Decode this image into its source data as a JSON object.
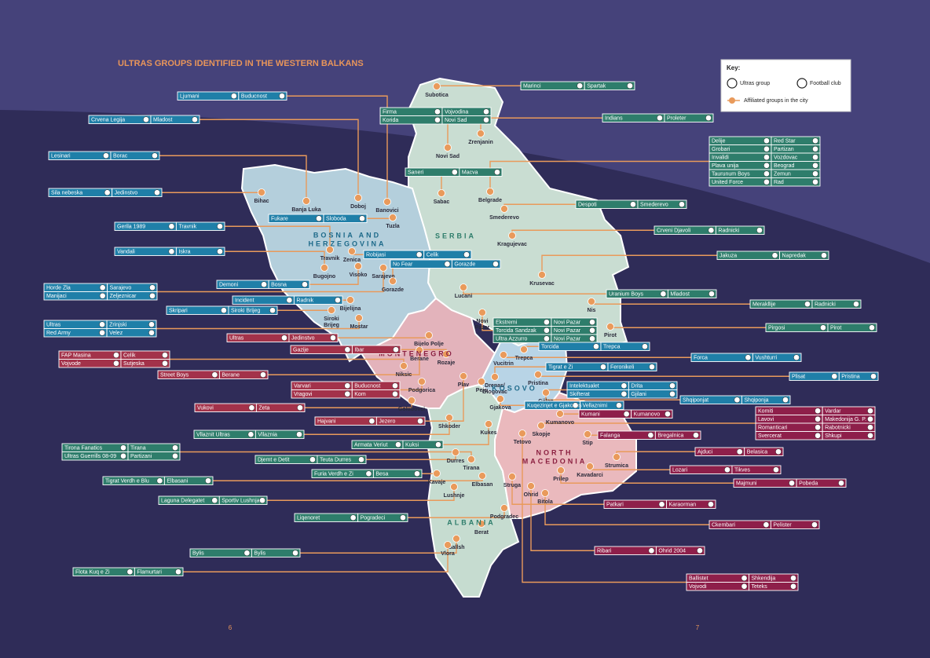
{
  "title": "ULTRAS GROUPS IDENTIFIED IN THE WESTERN BALKANS",
  "key": {
    "title": "Key:",
    "ultras_group": "Ultras group",
    "football_club": "Football club",
    "affiliated": "Affiliated groups in the city"
  },
  "countries": [
    {
      "lines": [
        "BOSNIA AND",
        "HERZEGOVINA"
      ],
      "color": "#1e6a8a"
    },
    {
      "lines": [
        "SERBIA"
      ],
      "color": "#2e7d6b"
    },
    {
      "lines": [
        "MONTENEGRO"
      ],
      "color": "#8b2040"
    },
    {
      "lines": [
        "KOSOVO"
      ],
      "color": "#1e6a8a"
    },
    {
      "lines": [
        "NORTH",
        "MACEDONIA"
      ],
      "color": "#8b2040"
    },
    {
      "lines": [
        "ALBANIA"
      ],
      "color": "#2e7d6b"
    }
  ],
  "cities": [
    "Subotica",
    "Novi Sad",
    "Zrenjanin",
    "Sabac",
    "Belgrade",
    "Smederevo",
    "Kragujevac",
    "Krusevac",
    "Nis",
    "Pirot",
    [
      "Novi",
      "Pazar"
    ],
    "Lucani",
    "Bihac",
    "Banja Luka",
    "Doboj",
    "Banovici",
    "Tuzla",
    "Travnik",
    "Zenica",
    "Visoko",
    "Sarajevo",
    "Bugojno",
    "Gorazde",
    "Bijelijna",
    [
      "Siroki",
      "Brijeg"
    ],
    "Mostar",
    "Bijelo Polje",
    "Berane",
    "Rozaje",
    "Niksic",
    "Podgorica",
    "Golubovci",
    "Plav",
    "Peja",
    "Vucitrin",
    "Trepca",
    [
      "Drenas/",
      "Glogovac"
    ],
    "Pristina",
    "Gjilan",
    "Gjakova",
    "Kumanovo",
    "Shkoder",
    "Kukes",
    "Skopje",
    "Tetovo",
    "Stip",
    "Strumica",
    "Durres",
    "Tirana",
    "Kavaje",
    "Prilep",
    "Kavadarci",
    "Elbasan",
    "Lushnje",
    "Struga",
    "Ohrid",
    "Bitola",
    "Podgradec",
    "Berat",
    "Ballsh",
    "Vlora"
  ],
  "groups": [
    {
      "color": "#2e7d6b",
      "rows": [
        [
          "Marinci",
          "Spartak"
        ]
      ]
    },
    {
      "color": "#1f7fa8",
      "rows": [
        [
          "Ljumani",
          "Buducnost"
        ]
      ]
    },
    {
      "color": "#2e7d6b",
      "rows": [
        [
          "Firma",
          "Vojvodina"
        ],
        [
          "Korida",
          "Novi Sad"
        ]
      ]
    },
    {
      "color": "#1f7fa8",
      "rows": [
        [
          "Crvena Legija",
          "Mladost"
        ]
      ]
    },
    {
      "color": "#2e7d6b",
      "rows": [
        [
          "Indians",
          "Proleter"
        ]
      ]
    },
    {
      "color": "#2e7d6b",
      "rows": [
        [
          "Delije",
          "Red Star"
        ],
        [
          "Grobari",
          "Partizan"
        ],
        [
          "Invalidi",
          "Vozdovac"
        ],
        [
          "Plava unija",
          "Beograd"
        ],
        [
          "Taurunum Boys",
          "Zemun"
        ],
        [
          "United Force",
          "Rad"
        ]
      ]
    },
    {
      "color": "#1f7fa8",
      "rows": [
        [
          "Lesinari",
          "Borac"
        ]
      ]
    },
    {
      "color": "#2e7d6b",
      "rows": [
        [
          "Saneri",
          "Macva"
        ]
      ]
    },
    {
      "color": "#1f7fa8",
      "rows": [
        [
          "Sila nebeska",
          "Jedinstvo"
        ]
      ]
    },
    {
      "color": "#2e7d6b",
      "rows": [
        [
          "Despoti",
          "Smederevo"
        ]
      ]
    },
    {
      "color": "#1f7fa8",
      "rows": [
        [
          "Fukare",
          "Sloboda"
        ]
      ]
    },
    {
      "color": "#1f7fa8",
      "rows": [
        [
          "Gerila 1989",
          "Travnik"
        ]
      ]
    },
    {
      "color": "#2e7d6b",
      "rows": [
        [
          "Crveni Djavoli",
          "Radnicki"
        ]
      ]
    },
    {
      "color": "#1f7fa8",
      "rows": [
        [
          "Vandali",
          "Iskra"
        ]
      ]
    },
    {
      "color": "#1f7fa8",
      "rows": [
        [
          "Robijasi",
          "Celik"
        ]
      ]
    },
    {
      "color": "#2e7d6b",
      "rows": [
        [
          "Jakuza",
          "Napredak"
        ]
      ]
    },
    {
      "color": "#1f7fa8",
      "rows": [
        [
          "No Fear",
          "Gorazde"
        ]
      ]
    },
    {
      "color": "#1f7fa8",
      "rows": [
        [
          "Demoni",
          "Bosna"
        ]
      ]
    },
    {
      "color": "#1f7fa8",
      "rows": [
        [
          "Horde Zla",
          "Sarajevo"
        ],
        [
          "Manijaci",
          "Zeljeznicar"
        ]
      ]
    },
    {
      "color": "#2e7d6b",
      "rows": [
        [
          "Uranium Boys",
          "Mladost"
        ]
      ]
    },
    {
      "color": "#1f7fa8",
      "rows": [
        [
          "Incident",
          "Radnik"
        ]
      ]
    },
    {
      "color": "#2e7d6b",
      "rows": [
        [
          "Merakllije",
          "Radnicki"
        ]
      ]
    },
    {
      "color": "#1f7fa8",
      "rows": [
        [
          "Skripari",
          "Siroki Brijeg"
        ]
      ]
    },
    {
      "color": "#1f7fa8",
      "rows": [
        [
          "Ultras",
          "Zrinjski"
        ],
        [
          "Red Army",
          "Velez"
        ]
      ]
    },
    {
      "color": "#2e7d6b",
      "rows": [
        [
          "Ekstremi",
          "Novi Pazar"
        ],
        [
          "Torcida Sandzak",
          "Novi Pazar"
        ],
        [
          "Ultra Azzurro",
          "Novi Pazar"
        ]
      ]
    },
    {
      "color": "#2e7d6b",
      "rows": [
        [
          "Pirgosi",
          "Pirot"
        ]
      ]
    },
    {
      "color": "#a3324a",
      "rows": [
        [
          "Ultras",
          "Jedinstvo"
        ]
      ]
    },
    {
      "color": "#a3324a",
      "rows": [
        [
          "Gazije",
          "Ibar"
        ]
      ]
    },
    {
      "color": "#1f7fa8",
      "rows": [
        [
          "Torcida",
          "Trepca"
        ]
      ]
    },
    {
      "color": "#a3324a",
      "rows": [
        [
          "FAP Masina",
          "Celik"
        ],
        [
          "Vojvode",
          "Sutjeska"
        ]
      ]
    },
    {
      "color": "#1f7fa8",
      "rows": [
        [
          "Forca",
          "Vushturri"
        ]
      ]
    },
    {
      "color": "#1f7fa8",
      "rows": [
        [
          "Tigrat e Zi",
          "Feronikeli"
        ]
      ]
    },
    {
      "color": "#a3324a",
      "rows": [
        [
          "Street Boys",
          "Berane"
        ]
      ]
    },
    {
      "color": "#1f7fa8",
      "rows": [
        [
          "Plisat",
          "Pristina"
        ]
      ]
    },
    {
      "color": "#a3324a",
      "rows": [
        [
          "Varvari",
          "Buducnost"
        ],
        [
          "Vragovi",
          "Kom"
        ]
      ]
    },
    {
      "color": "#1f7fa8",
      "rows": [
        [
          "Intelektualet",
          "Drita"
        ],
        [
          "Skifterat",
          "Gjilani"
        ]
      ]
    },
    {
      "color": "#1f7fa8",
      "rows": [
        [
          "Shqiponjat",
          "Shqiponja"
        ]
      ]
    },
    {
      "color": "#a3324a",
      "rows": [
        [
          "Vukovi",
          "Zeta"
        ]
      ]
    },
    {
      "color": "#1f7fa8",
      "rows": [
        [
          "Kuqezinjet e Gjakoves",
          "Vellaznimi"
        ]
      ]
    },
    {
      "color": "#8e1f4a",
      "rows": [
        [
          "Kumani",
          "Kumanovo"
        ]
      ]
    },
    {
      "color": "#8e1f4a",
      "rows": [
        [
          "Komiti",
          "Vardar"
        ],
        [
          "Lavovi",
          "Makedonija G. P."
        ],
        [
          "Romanticari",
          "Rabotnicki"
        ],
        [
          "Svercerat",
          "Shkupi"
        ]
      ]
    },
    {
      "color": "#a3324a",
      "rows": [
        [
          "Hajvani",
          "Jezero"
        ]
      ]
    },
    {
      "color": "#2e7d6b",
      "rows": [
        [
          "Vllaznit Ultras",
          "Vllaznia"
        ]
      ]
    },
    {
      "color": "#8e1f4a",
      "rows": [
        [
          "Falanga",
          "Bregalnica"
        ]
      ]
    },
    {
      "color": "#2e7d6b",
      "rows": [
        [
          "Armata Veriut",
          "Kuksi"
        ]
      ]
    },
    {
      "color": "#2e7d6b",
      "rows": [
        [
          "Tirona Fanatics",
          "Tirana"
        ],
        [
          "Ultras Guerrills 08-09",
          "Partizani"
        ]
      ]
    },
    {
      "color": "#8e1f4a",
      "rows": [
        [
          "Ajduci",
          "Belasica"
        ]
      ]
    },
    {
      "color": "#2e7d6b",
      "rows": [
        [
          "Djemt e Detit",
          "Teuta Durres"
        ]
      ]
    },
    {
      "color": "#2e7d6b",
      "rows": [
        [
          "Furia Verdh e Zi",
          "Besa"
        ]
      ]
    },
    {
      "color": "#8e1f4a",
      "rows": [
        [
          "Lozari",
          "Tikves"
        ]
      ]
    },
    {
      "color": "#2e7d6b",
      "rows": [
        [
          "Tigrat Verdh e Blu",
          "Elbasani"
        ]
      ]
    },
    {
      "color": "#8e1f4a",
      "rows": [
        [
          "Majmuni",
          "Pobeda"
        ]
      ]
    },
    {
      "color": "#2e7d6b",
      "rows": [
        [
          "Laguna Delegatet",
          "Sportiv Lushnja"
        ]
      ]
    },
    {
      "color": "#8e1f4a",
      "rows": [
        [
          "Patkari",
          "Karaorman"
        ]
      ]
    },
    {
      "color": "#2e7d6b",
      "rows": [
        [
          "Liqenoret",
          "Pogradeci"
        ]
      ]
    },
    {
      "color": "#8e1f4a",
      "rows": [
        [
          "Ckembari",
          "Pelister"
        ]
      ]
    },
    {
      "color": "#8e1f4a",
      "rows": [
        [
          "Ribari",
          "Ohrid 2004"
        ]
      ]
    },
    {
      "color": "#2e7d6b",
      "rows": [
        [
          "Bylis",
          "Bylis"
        ]
      ]
    },
    {
      "color": "#2e7d6b",
      "rows": [
        [
          "Flota Kuq e Zi",
          "Flamurtari"
        ]
      ]
    },
    {
      "color": "#8e1f4a",
      "rows": [
        [
          "Ballistet",
          "Shkendija"
        ],
        [
          "Vojvodi",
          "Teteks"
        ]
      ]
    }
  ],
  "page_numbers": [
    "6",
    "7"
  ]
}
